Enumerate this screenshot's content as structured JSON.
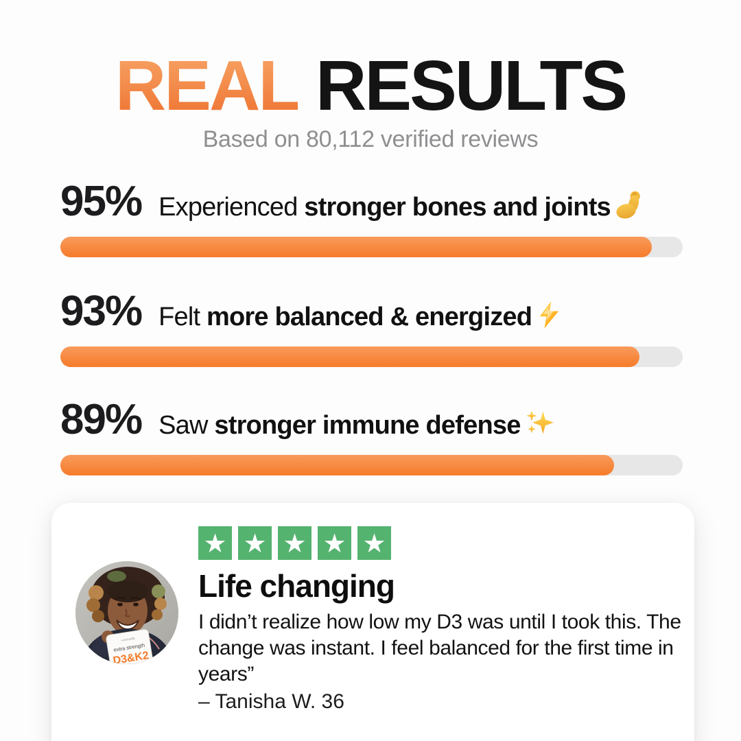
{
  "header": {
    "title_highlight": "REAL",
    "title_rest": "RESULTS",
    "subtitle": "Based on 80,112 verified reviews"
  },
  "stats": [
    {
      "percent": "95%",
      "lead": "Experienced ",
      "bold": "stronger bones and joints",
      "icon": "biceps-icon",
      "value": 95
    },
    {
      "percent": "93%",
      "lead": "Felt ",
      "bold": "more balanced & energized",
      "icon": "lightning-icon",
      "value": 93
    },
    {
      "percent": "89%",
      "lead": "Saw ",
      "bold": "stronger immune defense",
      "icon": "sparkles-icon",
      "value": 89
    }
  ],
  "review": {
    "rating_stars": 5,
    "star_glyph": "★",
    "title": "Life changing",
    "body": "I didn’t realize how low my D3 was until I took this. The change was instant. I feel balanced for the first time in years”",
    "attribution": "– Tanisha W. 36",
    "avatar_box_line1": "extra strength",
    "avatar_box_line2": "D3&K2"
  },
  "colors": {
    "accent_orange": "#F67E2E",
    "orange_gradient_top": "#F8A869",
    "orange_gradient_bottom": "#EE7231",
    "bar_track_gray": "#E7E7E7",
    "star_green": "#55B370",
    "subtitle_gray": "#8F8F92",
    "text_black": "#141414"
  },
  "chart_data": {
    "type": "bar",
    "orientation": "horizontal",
    "title": "REAL RESULTS",
    "subtitle": "Based on 80,112 verified reviews",
    "categories": [
      "Experienced stronger bones and joints",
      "Felt more balanced & energized",
      "Saw stronger immune defense"
    ],
    "values": [
      95,
      93,
      89
    ],
    "unit": "%",
    "xlim": [
      0,
      100
    ],
    "grid": false,
    "legend": false,
    "bar_color": "#F67E2E"
  }
}
